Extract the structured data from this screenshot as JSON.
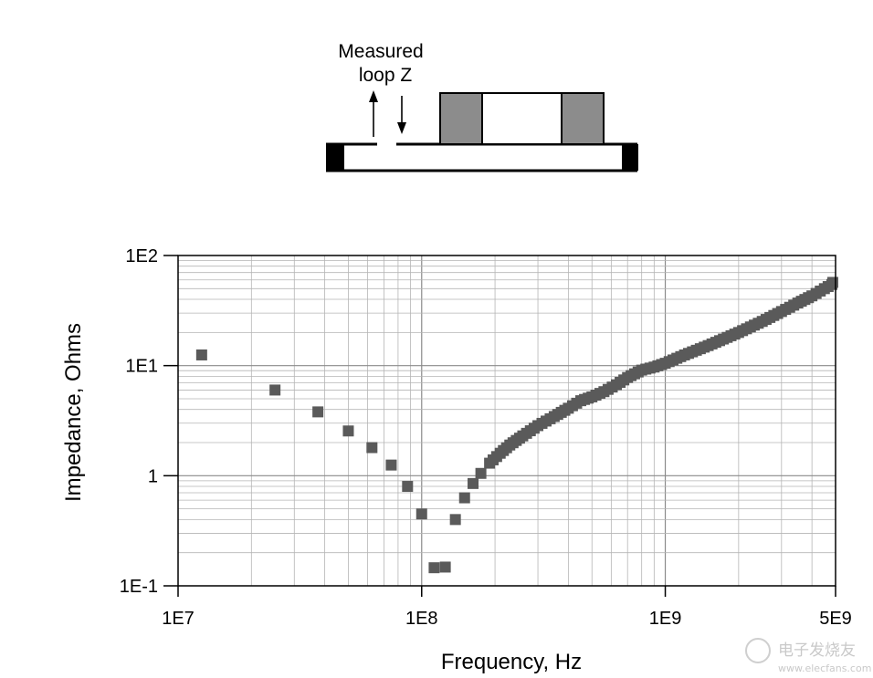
{
  "diagram": {
    "label_line1": "Measured",
    "label_line2": "loop Z"
  },
  "watermark": {
    "text": "电子发烧友",
    "url": "www.elecfans.com"
  },
  "chart_data": {
    "type": "scatter",
    "title": "",
    "xlabel": "Frequency, Hz",
    "ylabel": "Impedance, Ohms",
    "x_scale": "log",
    "y_scale": "log",
    "xlim": [
      10000000,
      5000000000
    ],
    "ylim": [
      0.1,
      100
    ],
    "x_ticks": [
      {
        "value": 10000000,
        "label": "1E7"
      },
      {
        "value": 100000000,
        "label": "1E8"
      },
      {
        "value": 1000000000,
        "label": "1E9"
      },
      {
        "value": 5000000000,
        "label": "5E9"
      }
    ],
    "y_ticks": [
      {
        "value": 100,
        "label": "1E2"
      },
      {
        "value": 10,
        "label": "1E1"
      },
      {
        "value": 1,
        "label": "1"
      },
      {
        "value": 0.1,
        "label": "1E-1"
      }
    ],
    "grid": true,
    "marker_color": "#5a5a5a",
    "series": [
      {
        "x": [
          12500000,
          25000000,
          37500000,
          50000000,
          62500000,
          75000000,
          87500000,
          100000000,
          112500000,
          125000000,
          137500000,
          150000000,
          162500000,
          175000000
        ],
        "y": [
          12.5,
          6.0,
          3.8,
          2.55,
          1.8,
          1.25,
          0.8,
          0.45,
          0.146,
          0.148,
          0.4,
          0.63,
          0.85,
          1.05
        ]
      }
    ],
    "curve": {
      "x": [
        190000000,
        210000000,
        230000000,
        260000000,
        300000000,
        350000000,
        400000000,
        450000000,
        500000000,
        560000000,
        630000000,
        700000000,
        800000000,
        900000000,
        1000000000,
        1200000000,
        1500000000,
        2000000000,
        2500000000,
        3000000000,
        3500000000,
        4000000000,
        4500000000,
        5000000000
      ],
      "y": [
        1.3,
        1.6,
        1.9,
        2.3,
        2.85,
        3.45,
        4.1,
        4.8,
        5.2,
        5.8,
        6.7,
        7.8,
        9.1,
        9.7,
        10.5,
        12.5,
        15.2,
        20.0,
        25.2,
        31.0,
        37.0,
        43.0,
        50.0,
        57.0
      ]
    }
  }
}
